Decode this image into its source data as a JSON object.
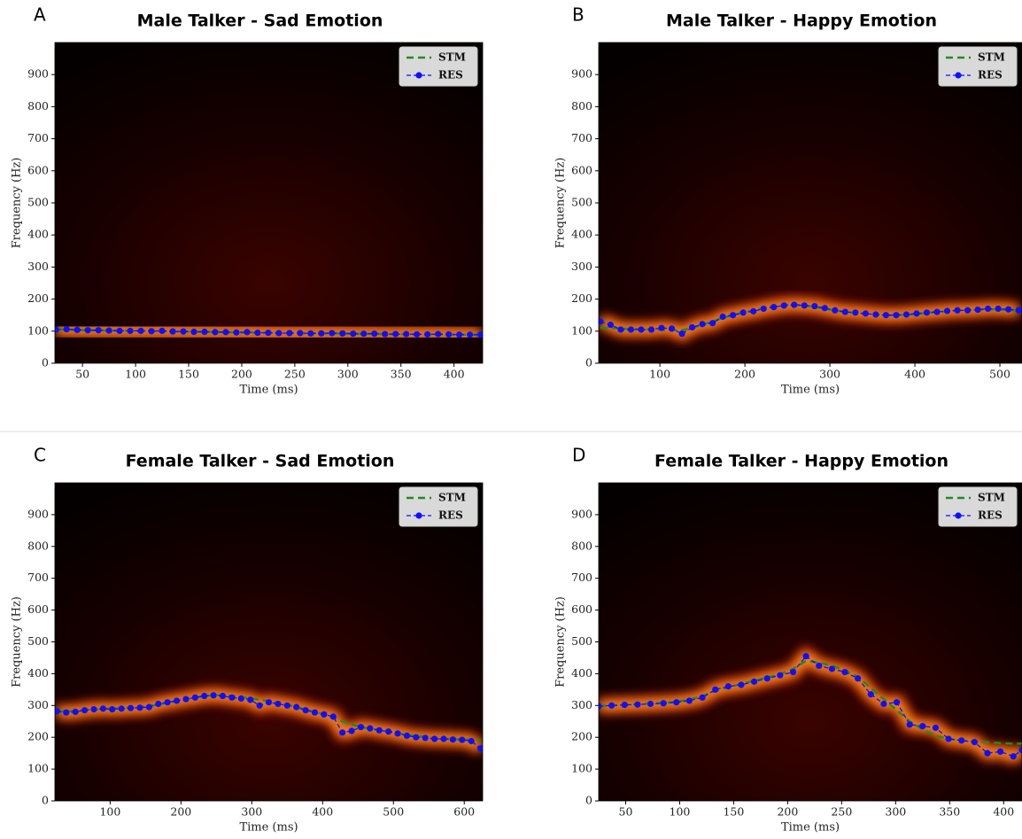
{
  "chart_data": [
    {
      "type": "line",
      "panel": "A",
      "title": "Male Talker - Sad Emotion",
      "x_label": "Time (ms)",
      "y_label": "Frequency (Hz)",
      "xlim": [
        24,
        427
      ],
      "ylim": [
        0,
        1000
      ],
      "xticks": [
        50,
        100,
        150,
        200,
        250,
        300,
        350,
        400
      ],
      "yticks": [
        0,
        100,
        200,
        300,
        400,
        500,
        600,
        700,
        800,
        900
      ],
      "legend": "upper right",
      "x": [
        25,
        35,
        45,
        55,
        65,
        75,
        85,
        95,
        105,
        115,
        125,
        135,
        145,
        155,
        165,
        175,
        185,
        195,
        205,
        215,
        225,
        235,
        245,
        255,
        265,
        275,
        285,
        295,
        305,
        315,
        325,
        335,
        345,
        355,
        365,
        375,
        385,
        395,
        405,
        415,
        425
      ],
      "series": [
        {
          "name": "STM",
          "color": "#1e8c1e",
          "style": "dashed",
          "values": [
            105,
            105,
            104,
            103,
            103,
            102,
            102,
            101,
            101,
            100,
            100,
            99,
            99,
            98,
            98,
            97,
            97,
            96,
            96,
            95,
            95,
            94,
            94,
            94,
            93,
            93,
            93,
            93,
            92,
            92,
            92,
            91,
            91,
            91,
            90,
            90,
            90,
            90,
            89,
            89,
            89
          ]
        },
        {
          "name": "RES",
          "color": "#0f0fff",
          "style": "dots",
          "values": [
            105,
            106,
            104,
            103,
            103,
            102,
            101,
            101,
            101,
            100,
            101,
            99,
            99,
            98,
            98,
            97,
            97,
            96,
            97,
            95,
            95,
            94,
            94,
            94,
            93,
            93,
            94,
            93,
            92,
            92,
            92,
            91,
            91,
            91,
            90,
            90,
            91,
            90,
            89,
            89,
            89
          ]
        }
      ]
    },
    {
      "type": "line",
      "panel": "B",
      "title": "Male Talker - Happy Emotion",
      "x_label": "Time (ms)",
      "y_label": "Frequency (Hz)",
      "xlim": [
        28,
        526
      ],
      "ylim": [
        0,
        1000
      ],
      "xticks": [
        100,
        200,
        300,
        400,
        500
      ],
      "yticks": [
        0,
        100,
        200,
        300,
        400,
        500,
        600,
        700,
        800,
        900
      ],
      "legend": "upper right",
      "x": [
        30,
        42,
        54,
        66,
        78,
        90,
        102,
        114,
        126,
        138,
        150,
        162,
        174,
        186,
        198,
        210,
        222,
        234,
        246,
        258,
        270,
        282,
        294,
        306,
        318,
        330,
        342,
        354,
        366,
        378,
        390,
        402,
        414,
        426,
        438,
        450,
        462,
        474,
        486,
        498,
        510,
        522
      ],
      "series": [
        {
          "name": "STM",
          "color": "#1e8c1e",
          "style": "dashed",
          "values": [
            110,
            110,
            108,
            107,
            106,
            105,
            105,
            104,
            103,
            110,
            120,
            130,
            142,
            150,
            158,
            165,
            172,
            178,
            182,
            182,
            180,
            176,
            170,
            165,
            160,
            157,
            154,
            152,
            150,
            150,
            151,
            154,
            157,
            160,
            162,
            164,
            166,
            167,
            168,
            168,
            166,
            164
          ]
        },
        {
          "name": "RES",
          "color": "#0f0fff",
          "style": "dots",
          "values": [
            130,
            120,
            105,
            105,
            105,
            105,
            110,
            108,
            92,
            112,
            122,
            125,
            145,
            150,
            158,
            162,
            170,
            175,
            180,
            182,
            180,
            178,
            172,
            165,
            160,
            158,
            155,
            152,
            150,
            150,
            152,
            155,
            158,
            160,
            163,
            165,
            165,
            167,
            170,
            170,
            168,
            165
          ]
        }
      ]
    },
    {
      "type": "line",
      "panel": "C",
      "title": "Female Talker - Sad Emotion",
      "x_label": "Time (ms)",
      "y_label": "Frequency (Hz)",
      "xlim": [
        22,
        626
      ],
      "ylim": [
        0,
        1000
      ],
      "xticks": [
        100,
        200,
        300,
        400,
        500,
        600
      ],
      "yticks": [
        0,
        100,
        200,
        300,
        400,
        500,
        600,
        700,
        800,
        900
      ],
      "legend": "upper right",
      "x": [
        25,
        38,
        51,
        64,
        77,
        90,
        103,
        116,
        129,
        142,
        155,
        168,
        181,
        194,
        207,
        220,
        233,
        246,
        259,
        272,
        285,
        298,
        311,
        324,
        337,
        350,
        363,
        376,
        389,
        402,
        415,
        428,
        441,
        454,
        467,
        480,
        493,
        506,
        519,
        532,
        545,
        558,
        571,
        584,
        597,
        610,
        623
      ],
      "series": [
        {
          "name": "STM",
          "color": "#1e8c1e",
          "style": "dashed",
          "values": [
            282,
            282,
            283,
            285,
            287,
            289,
            290,
            291,
            293,
            295,
            298,
            303,
            308,
            314,
            320,
            325,
            330,
            332,
            332,
            330,
            326,
            322,
            318,
            314,
            308,
            302,
            295,
            287,
            280,
            272,
            262,
            250,
            240,
            232,
            227,
            222,
            218,
            213,
            208,
            204,
            201,
            198,
            196,
            194,
            193,
            192,
            192
          ]
        },
        {
          "name": "RES",
          "color": "#0f0fff",
          "style": "dots",
          "values": [
            282,
            278,
            280,
            285,
            288,
            290,
            288,
            290,
            292,
            293,
            295,
            305,
            310,
            315,
            320,
            325,
            330,
            332,
            330,
            325,
            322,
            318,
            300,
            310,
            305,
            300,
            295,
            285,
            278,
            272,
            265,
            215,
            220,
            232,
            228,
            222,
            218,
            212,
            205,
            200,
            198,
            195,
            195,
            193,
            192,
            188,
            165
          ]
        }
      ]
    },
    {
      "type": "line",
      "panel": "D",
      "title": "Female Talker - Happy Emotion",
      "x_label": "Time (ms)",
      "y_label": "Frequency (Hz)",
      "xlim": [
        25,
        417
      ],
      "ylim": [
        0,
        1000
      ],
      "xticks": [
        50,
        100,
        150,
        200,
        250,
        300,
        350,
        400
      ],
      "yticks": [
        0,
        100,
        200,
        300,
        400,
        500,
        600,
        700,
        800,
        900
      ],
      "legend": "upper right",
      "x": [
        25,
        37,
        49,
        61,
        73,
        85,
        97,
        109,
        121,
        133,
        145,
        157,
        169,
        181,
        193,
        205,
        217,
        229,
        241,
        253,
        265,
        277,
        289,
        301,
        313,
        325,
        337,
        349,
        361,
        373,
        385,
        397,
        409,
        417
      ],
      "series": [
        {
          "name": "STM",
          "color": "#1e8c1e",
          "style": "dashed",
          "values": [
            298,
            300,
            302,
            304,
            306,
            308,
            312,
            318,
            330,
            345,
            358,
            368,
            378,
            388,
            398,
            415,
            440,
            435,
            425,
            410,
            390,
            355,
            320,
            285,
            250,
            225,
            205,
            195,
            190,
            187,
            184,
            182,
            180,
            180
          ]
        },
        {
          "name": "RES",
          "color": "#0f0fff",
          "style": "dots",
          "values": [
            298,
            300,
            302,
            303,
            305,
            307,
            310,
            315,
            325,
            350,
            360,
            365,
            375,
            385,
            395,
            405,
            455,
            425,
            415,
            405,
            385,
            335,
            305,
            310,
            240,
            235,
            230,
            195,
            190,
            185,
            150,
            155,
            140,
            160
          ]
        }
      ]
    }
  ]
}
